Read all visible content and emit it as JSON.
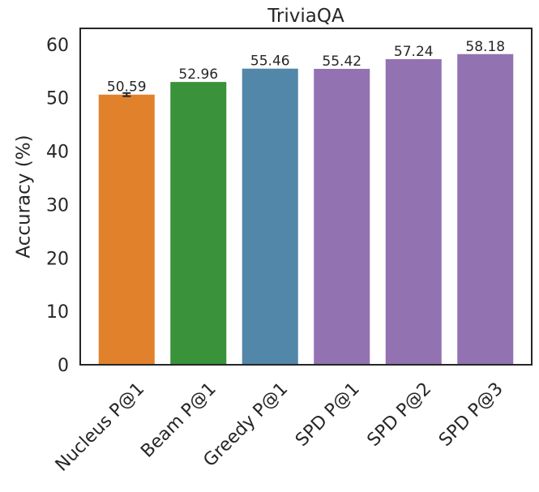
{
  "chart_data": {
    "type": "bar",
    "title": "TriviaQA",
    "xlabel": "",
    "ylabel": "Accuracy (%)",
    "ylim": [
      0,
      63
    ],
    "yticks": [
      0,
      10,
      20,
      30,
      40,
      50,
      60
    ],
    "grid": false,
    "categories": [
      "Nucleus P@1",
      "Beam P@1",
      "Greedy P@1",
      "SPD P@1",
      "SPD P@2",
      "SPD P@3"
    ],
    "values": [
      50.59,
      52.96,
      55.46,
      55.42,
      57.24,
      58.18
    ],
    "data_labels": [
      "50.59",
      "52.96",
      "55.46",
      "55.42",
      "57.24",
      "58.18"
    ],
    "error_bars": [
      0.3,
      null,
      null,
      null,
      null,
      null
    ],
    "colors": [
      "#e1812c",
      "#3a923a",
      "#5387a9",
      "#9372b2",
      "#9372b2",
      "#9372b2"
    ]
  }
}
